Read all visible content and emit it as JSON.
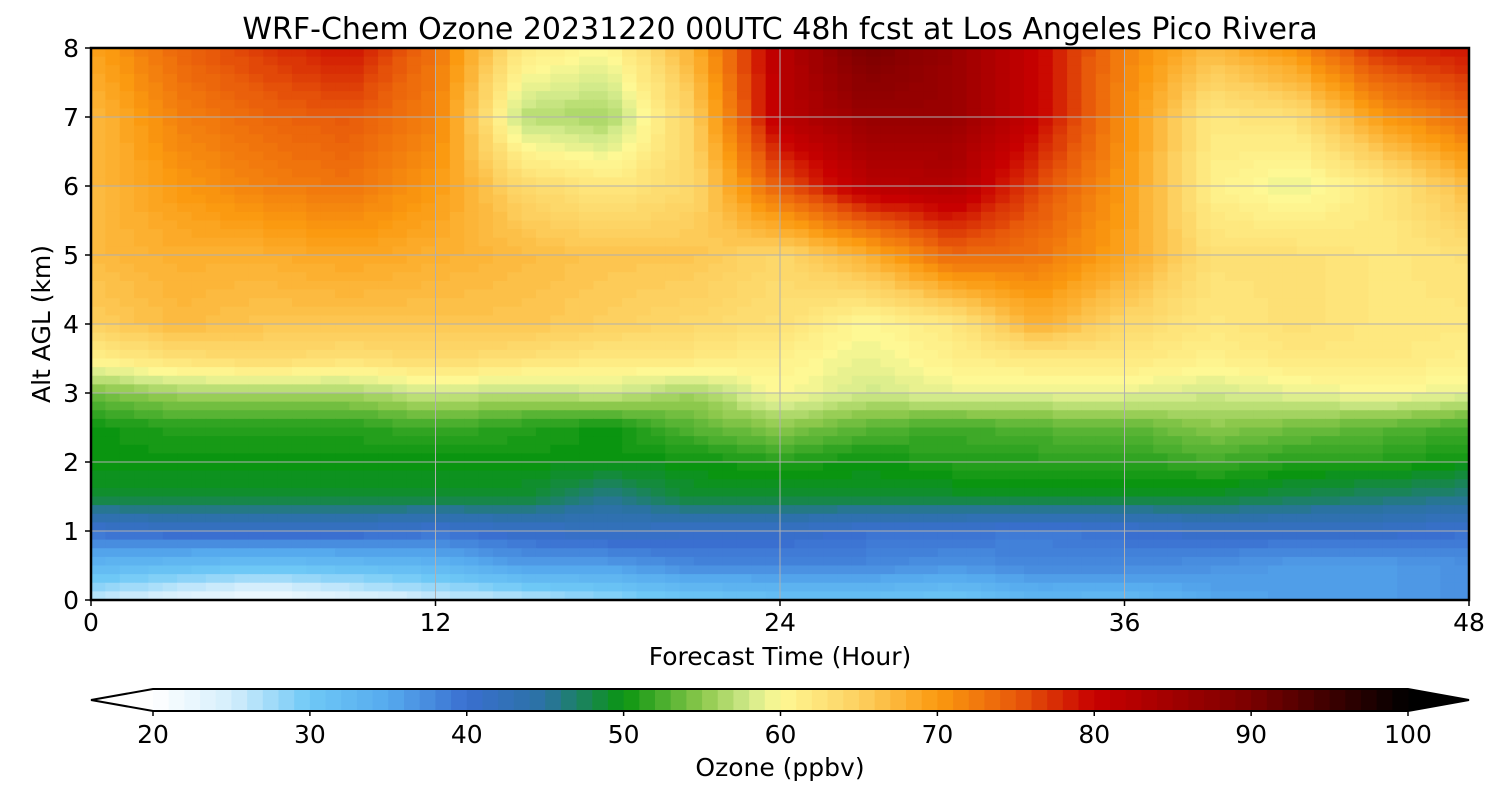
{
  "chart_data": {
    "type": "heatmap",
    "title": "WRF-Chem Ozone  20231220 00UTC 48h fcst at Los Angeles Pico Rivera",
    "xlabel": "Forecast Time (Hour)",
    "ylabel": "Alt AGL (km)",
    "xlim": [
      0,
      48
    ],
    "ylim": [
      0,
      8
    ],
    "xticks": [
      0,
      12,
      24,
      36,
      48
    ],
    "yticks": [
      0,
      1,
      2,
      3,
      4,
      5,
      6,
      7,
      8
    ],
    "grid": true,
    "x_hours": [
      0,
      3,
      6,
      9,
      12,
      15,
      18,
      21,
      24,
      27,
      30,
      33,
      36,
      39,
      42,
      45,
      48
    ],
    "y_km": [
      0,
      0.5,
      1,
      1.5,
      2,
      2.5,
      3,
      3.5,
      4,
      5,
      6,
      7,
      8
    ],
    "ozone_ppbv": [
      [
        26,
        23,
        21,
        23,
        25,
        26,
        28,
        30,
        31,
        31,
        30,
        33,
        32,
        35,
        36,
        36,
        37
      ],
      [
        33,
        32,
        31,
        32,
        33,
        36,
        36,
        38,
        38,
        38,
        37,
        38,
        38,
        37,
        36,
        36,
        37
      ],
      [
        40,
        41,
        41,
        41,
        40,
        41,
        42,
        41,
        41,
        40,
        40,
        39,
        40,
        41,
        41,
        41,
        40
      ],
      [
        49,
        49,
        49,
        49,
        49,
        49,
        46,
        49,
        49,
        49,
        49,
        49,
        49,
        49,
        48,
        47,
        46
      ],
      [
        50,
        50,
        50,
        50,
        50,
        50,
        50,
        50,
        51,
        50,
        51,
        51,
        51,
        52,
        51,
        51,
        50
      ],
      [
        50,
        51,
        51,
        51,
        52,
        51,
        50,
        53,
        55,
        53,
        52,
        53,
        53,
        55,
        54,
        53,
        52
      ],
      [
        54,
        56,
        56,
        56,
        58,
        57,
        58,
        56,
        60,
        58,
        59,
        59,
        59,
        58,
        59,
        60,
        59
      ],
      [
        61,
        63,
        64,
        63,
        64,
        63,
        62,
        62,
        61,
        59,
        61,
        62,
        62,
        61,
        62,
        62,
        61
      ],
      [
        65,
        67,
        66,
        66,
        66,
        66,
        65,
        64,
        63,
        60,
        62,
        68,
        64,
        62,
        63,
        62,
        62
      ],
      [
        67,
        68,
        68,
        69,
        68,
        67,
        66,
        66,
        64,
        68,
        74,
        73,
        69,
        63,
        63,
        62,
        63
      ],
      [
        67,
        70,
        72,
        73,
        70,
        64,
        62,
        64,
        75,
        82,
        83,
        76,
        70,
        61,
        59,
        62,
        67
      ],
      [
        67,
        72,
        74,
        75,
        72,
        57,
        56,
        65,
        82,
        86,
        86,
        80,
        71,
        62,
        63,
        70,
        74
      ],
      [
        69,
        74,
        77,
        79,
        73,
        62,
        60,
        68,
        82,
        90,
        86,
        80,
        72,
        67,
        71,
        78,
        79
      ]
    ],
    "colorbar": {
      "label": "Ozone  (ppbv)",
      "min": 20,
      "max": 100,
      "ticks": [
        20,
        30,
        40,
        50,
        60,
        70,
        80,
        90,
        100
      ],
      "extend": "both",
      "stops": [
        {
          "v": 20,
          "c": "#ffffff"
        },
        {
          "v": 25,
          "c": "#d4eefc"
        },
        {
          "v": 30,
          "c": "#6ec8f6"
        },
        {
          "v": 35,
          "c": "#56aaee"
        },
        {
          "v": 40,
          "c": "#3a6fd0"
        },
        {
          "v": 45,
          "c": "#2a72a2"
        },
        {
          "v": 50,
          "c": "#0a9510"
        },
        {
          "v": 55,
          "c": "#8cc84c"
        },
        {
          "v": 58,
          "c": "#d2ea8a"
        },
        {
          "v": 60,
          "c": "#fef894"
        },
        {
          "v": 65,
          "c": "#fdd060"
        },
        {
          "v": 70,
          "c": "#fb9a10"
        },
        {
          "v": 75,
          "c": "#e85a0a"
        },
        {
          "v": 80,
          "c": "#c80000"
        },
        {
          "v": 90,
          "c": "#7a0000"
        },
        {
          "v": 100,
          "c": "#000000"
        }
      ]
    }
  }
}
